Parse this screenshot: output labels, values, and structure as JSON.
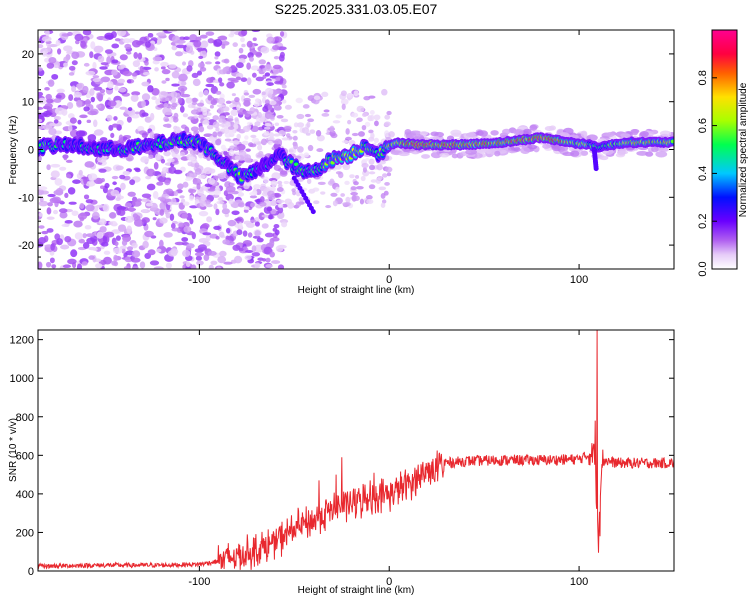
{
  "title": "S225.2025.331.03.05.E07",
  "chart_data": [
    {
      "type": "heatmap",
      "xlabel": "Height of straight line (km)",
      "ylabel": "Frequency (Hz)",
      "xlim": [
        -185,
        150
      ],
      "ylim": [
        -25,
        25
      ],
      "xticks": [
        -100,
        0,
        100
      ],
      "yticks": [
        -20,
        -10,
        0,
        10,
        20
      ],
      "colorbar": {
        "label": "Normalized spectral amplitude",
        "range": [
          0.0,
          1.0
        ],
        "ticks": [
          "0.0",
          "0.2",
          "0.4",
          "0.6",
          "0.8"
        ],
        "colors": [
          "#ffffff",
          "#c58ff0",
          "#7a00ff",
          "#0000ff",
          "#00c8ff",
          "#00ff64",
          "#aaff00",
          "#ffd000",
          "#ff6a00",
          "#ff0050",
          "#ff0090"
        ]
      },
      "ridge": [
        {
          "x": -185,
          "y": 0.5,
          "amp": 0.55
        },
        {
          "x": -170,
          "y": 1.0,
          "amp": 0.45
        },
        {
          "x": -150,
          "y": 0.0,
          "amp": 0.45
        },
        {
          "x": -130,
          "y": 0.5,
          "amp": 0.5
        },
        {
          "x": -110,
          "y": 2.0,
          "amp": 0.5
        },
        {
          "x": -100,
          "y": 1.5,
          "amp": 0.55
        },
        {
          "x": -92,
          "y": -1.0,
          "amp": 0.5
        },
        {
          "x": -85,
          "y": -3.5,
          "amp": 0.45
        },
        {
          "x": -78,
          "y": -6.0,
          "amp": 0.55
        },
        {
          "x": -68,
          "y": -4.0,
          "amp": 0.4
        },
        {
          "x": -58,
          "y": -1.0,
          "amp": 0.45
        },
        {
          "x": -52,
          "y": -3.0,
          "amp": 0.55
        },
        {
          "x": -45,
          "y": -5.0,
          "amp": 0.5
        },
        {
          "x": -38,
          "y": -4.0,
          "amp": 0.55
        },
        {
          "x": -30,
          "y": -2.0,
          "amp": 0.6
        },
        {
          "x": -20,
          "y": -1.0,
          "amp": 0.7
        },
        {
          "x": -12,
          "y": 1.0,
          "amp": 0.6
        },
        {
          "x": -5,
          "y": -1.0,
          "amp": 0.55
        },
        {
          "x": 3,
          "y": 1.5,
          "amp": 0.7
        },
        {
          "x": 15,
          "y": 1.0,
          "amp": 0.9
        },
        {
          "x": 40,
          "y": 1.0,
          "amp": 0.85
        },
        {
          "x": 60,
          "y": 1.5,
          "amp": 0.8
        },
        {
          "x": 80,
          "y": 2.5,
          "amp": 0.9
        },
        {
          "x": 95,
          "y": 1.5,
          "amp": 0.75
        },
        {
          "x": 105,
          "y": 1.0,
          "amp": 0.6
        },
        {
          "x": 110,
          "y": 0.5,
          "amp": 0.5
        },
        {
          "x": 125,
          "y": 1.5,
          "amp": 0.7
        },
        {
          "x": 150,
          "y": 1.5,
          "amp": 0.7
        }
      ]
    },
    {
      "type": "line",
      "xlabel": "Height of straight line (km)",
      "ylabel": "SNR (10 * v/v)",
      "xlim": [
        -185,
        150
      ],
      "ylim": [
        0,
        1250
      ],
      "xticks": [
        -100,
        0,
        100
      ],
      "yticks": [
        0,
        200,
        400,
        600,
        800,
        1000,
        1200
      ],
      "color": "#e8282e",
      "envelope_x": [
        -185,
        -150,
        -120,
        -100,
        -90,
        -80,
        -70,
        -60,
        -50,
        -40,
        -30,
        -20,
        -10,
        0,
        10,
        20,
        30,
        40,
        60,
        80,
        100,
        105,
        108,
        110,
        112,
        115,
        120,
        150
      ],
      "envelope_y": [
        25,
        30,
        30,
        35,
        50,
        80,
        110,
        150,
        220,
        260,
        320,
        350,
        380,
        400,
        450,
        520,
        560,
        570,
        575,
        575,
        580,
        600,
        620,
        200,
        580,
        570,
        560,
        560
      ],
      "spikes": [
        {
          "x": 109.5,
          "y": 1250
        },
        {
          "x": 110.3,
          "y": 95
        },
        {
          "x": 108.5,
          "y": 780
        },
        {
          "x": 111.0,
          "y": 180
        },
        {
          "x": -25,
          "y": 590
        },
        {
          "x": -28,
          "y": 500
        },
        {
          "x": -37,
          "y": 470
        },
        {
          "x": -10,
          "y": 470
        },
        {
          "x": -5,
          "y": 440
        },
        {
          "x": -8,
          "y": 510
        }
      ]
    }
  ]
}
